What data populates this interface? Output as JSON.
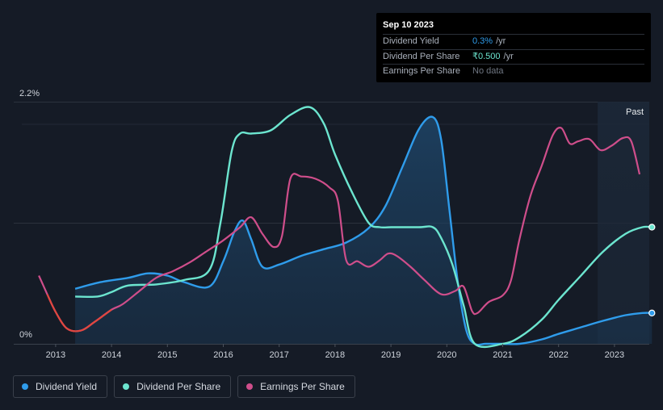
{
  "tooltip": {
    "date": "Sep 10 2023",
    "rows": [
      {
        "label": "Dividend Yield",
        "value": "0.3%",
        "unit": "/yr"
      },
      {
        "label": "Dividend Per Share",
        "value": "₹0.500",
        "unit": "/yr"
      },
      {
        "label": "Earnings Per Share",
        "value": "No data",
        "unit": ""
      }
    ]
  },
  "legend": [
    {
      "label": "Dividend Yield",
      "color": "#2f9ceb"
    },
    {
      "label": "Dividend Per Share",
      "color": "#6ce5cf"
    },
    {
      "label": "Earnings Per Share",
      "color": "#cf4e8b"
    }
  ],
  "chart_data": {
    "type": "line",
    "y_top_label": "2.2%",
    "y_bottom_label": "0%",
    "past_label": "Past",
    "x_ticks": [
      "2013",
      "2014",
      "2015",
      "2016",
      "2017",
      "2018",
      "2019",
      "2020",
      "2021",
      "2022",
      "2023"
    ],
    "xlim": [
      2012.25,
      2023.67
    ],
    "ylim": [
      0,
      2.2
    ],
    "past_region_start": 2022.7,
    "series": [
      {
        "name": "Dividend Yield",
        "color": "#2f9ceb",
        "x": [
          2013.35,
          2013.8,
          2014.3,
          2014.65,
          2015.0,
          2015.3,
          2015.75,
          2016.0,
          2016.2,
          2016.35,
          2016.5,
          2016.7,
          2017.0,
          2017.4,
          2017.8,
          2018.2,
          2018.6,
          2018.9,
          2019.2,
          2019.5,
          2019.75,
          2019.9,
          2020.05,
          2020.2,
          2020.35,
          2020.5,
          2020.7,
          2021.0,
          2021.3,
          2021.7,
          2022.0,
          2022.4,
          2022.8,
          2023.2,
          2023.5,
          2023.67
        ],
        "y": [
          0.5,
          0.56,
          0.6,
          0.64,
          0.62,
          0.56,
          0.52,
          0.75,
          1.02,
          1.12,
          0.95,
          0.7,
          0.72,
          0.8,
          0.86,
          0.92,
          1.05,
          1.25,
          1.6,
          1.95,
          2.06,
          1.85,
          1.2,
          0.55,
          0.12,
          0.0,
          0.0,
          0.0,
          0.0,
          0.04,
          0.09,
          0.15,
          0.21,
          0.26,
          0.28,
          0.28
        ]
      },
      {
        "name": "Dividend Per Share",
        "color": "#6ce5cf",
        "x": [
          2013.35,
          2013.75,
          2014.0,
          2014.3,
          2014.8,
          2015.3,
          2015.75,
          2015.95,
          2016.15,
          2016.3,
          2016.5,
          2016.85,
          2017.2,
          2017.55,
          2017.8,
          2018.0,
          2018.3,
          2018.6,
          2018.8,
          2019.0,
          2019.5,
          2019.75,
          2019.9,
          2020.1,
          2020.3,
          2020.5,
          2021.0,
          2021.3,
          2021.7,
          2022.0,
          2022.4,
          2022.8,
          2023.2,
          2023.5,
          2023.67
        ],
        "y": [
          0.43,
          0.43,
          0.47,
          0.53,
          0.54,
          0.58,
          0.67,
          1.1,
          1.75,
          1.91,
          1.91,
          1.94,
          2.08,
          2.15,
          2.0,
          1.72,
          1.38,
          1.1,
          1.06,
          1.06,
          1.06,
          1.06,
          0.96,
          0.72,
          0.35,
          0.0,
          0.0,
          0.06,
          0.22,
          0.4,
          0.62,
          0.84,
          1.0,
          1.06,
          1.06
        ]
      },
      {
        "name": "Earnings Per Share",
        "color": "#cf4e8b",
        "x": [
          2012.7,
          2012.85,
          2013.0,
          2013.2,
          2013.45,
          2013.7,
          2014.0,
          2014.2,
          2014.5,
          2014.8,
          2015.1,
          2015.4,
          2015.7,
          2016.0,
          2016.3,
          2016.5,
          2016.7,
          2016.9,
          2017.05,
          2017.2,
          2017.4,
          2017.65,
          2017.9,
          2018.05,
          2018.2,
          2018.4,
          2018.6,
          2018.8,
          2018.95,
          2019.1,
          2019.35,
          2019.6,
          2019.9,
          2020.15,
          2020.3,
          2020.45,
          2020.55,
          2020.75,
          2021.0,
          2021.15,
          2021.3,
          2021.5,
          2021.7,
          2021.9,
          2022.05,
          2022.2,
          2022.35,
          2022.55,
          2022.75,
          2022.95,
          2023.15,
          2023.3,
          2023.45
        ],
        "y": [
          0.62,
          0.45,
          0.29,
          0.14,
          0.12,
          0.2,
          0.31,
          0.36,
          0.48,
          0.6,
          0.66,
          0.74,
          0.84,
          0.94,
          1.06,
          1.15,
          1.0,
          0.88,
          0.98,
          1.5,
          1.52,
          1.5,
          1.42,
          1.3,
          0.76,
          0.75,
          0.7,
          0.76,
          0.82,
          0.8,
          0.7,
          0.58,
          0.45,
          0.48,
          0.52,
          0.3,
          0.28,
          0.38,
          0.44,
          0.58,
          0.95,
          1.35,
          1.62,
          1.9,
          1.96,
          1.82,
          1.84,
          1.86,
          1.76,
          1.8,
          1.87,
          1.84,
          1.54
        ]
      }
    ]
  }
}
